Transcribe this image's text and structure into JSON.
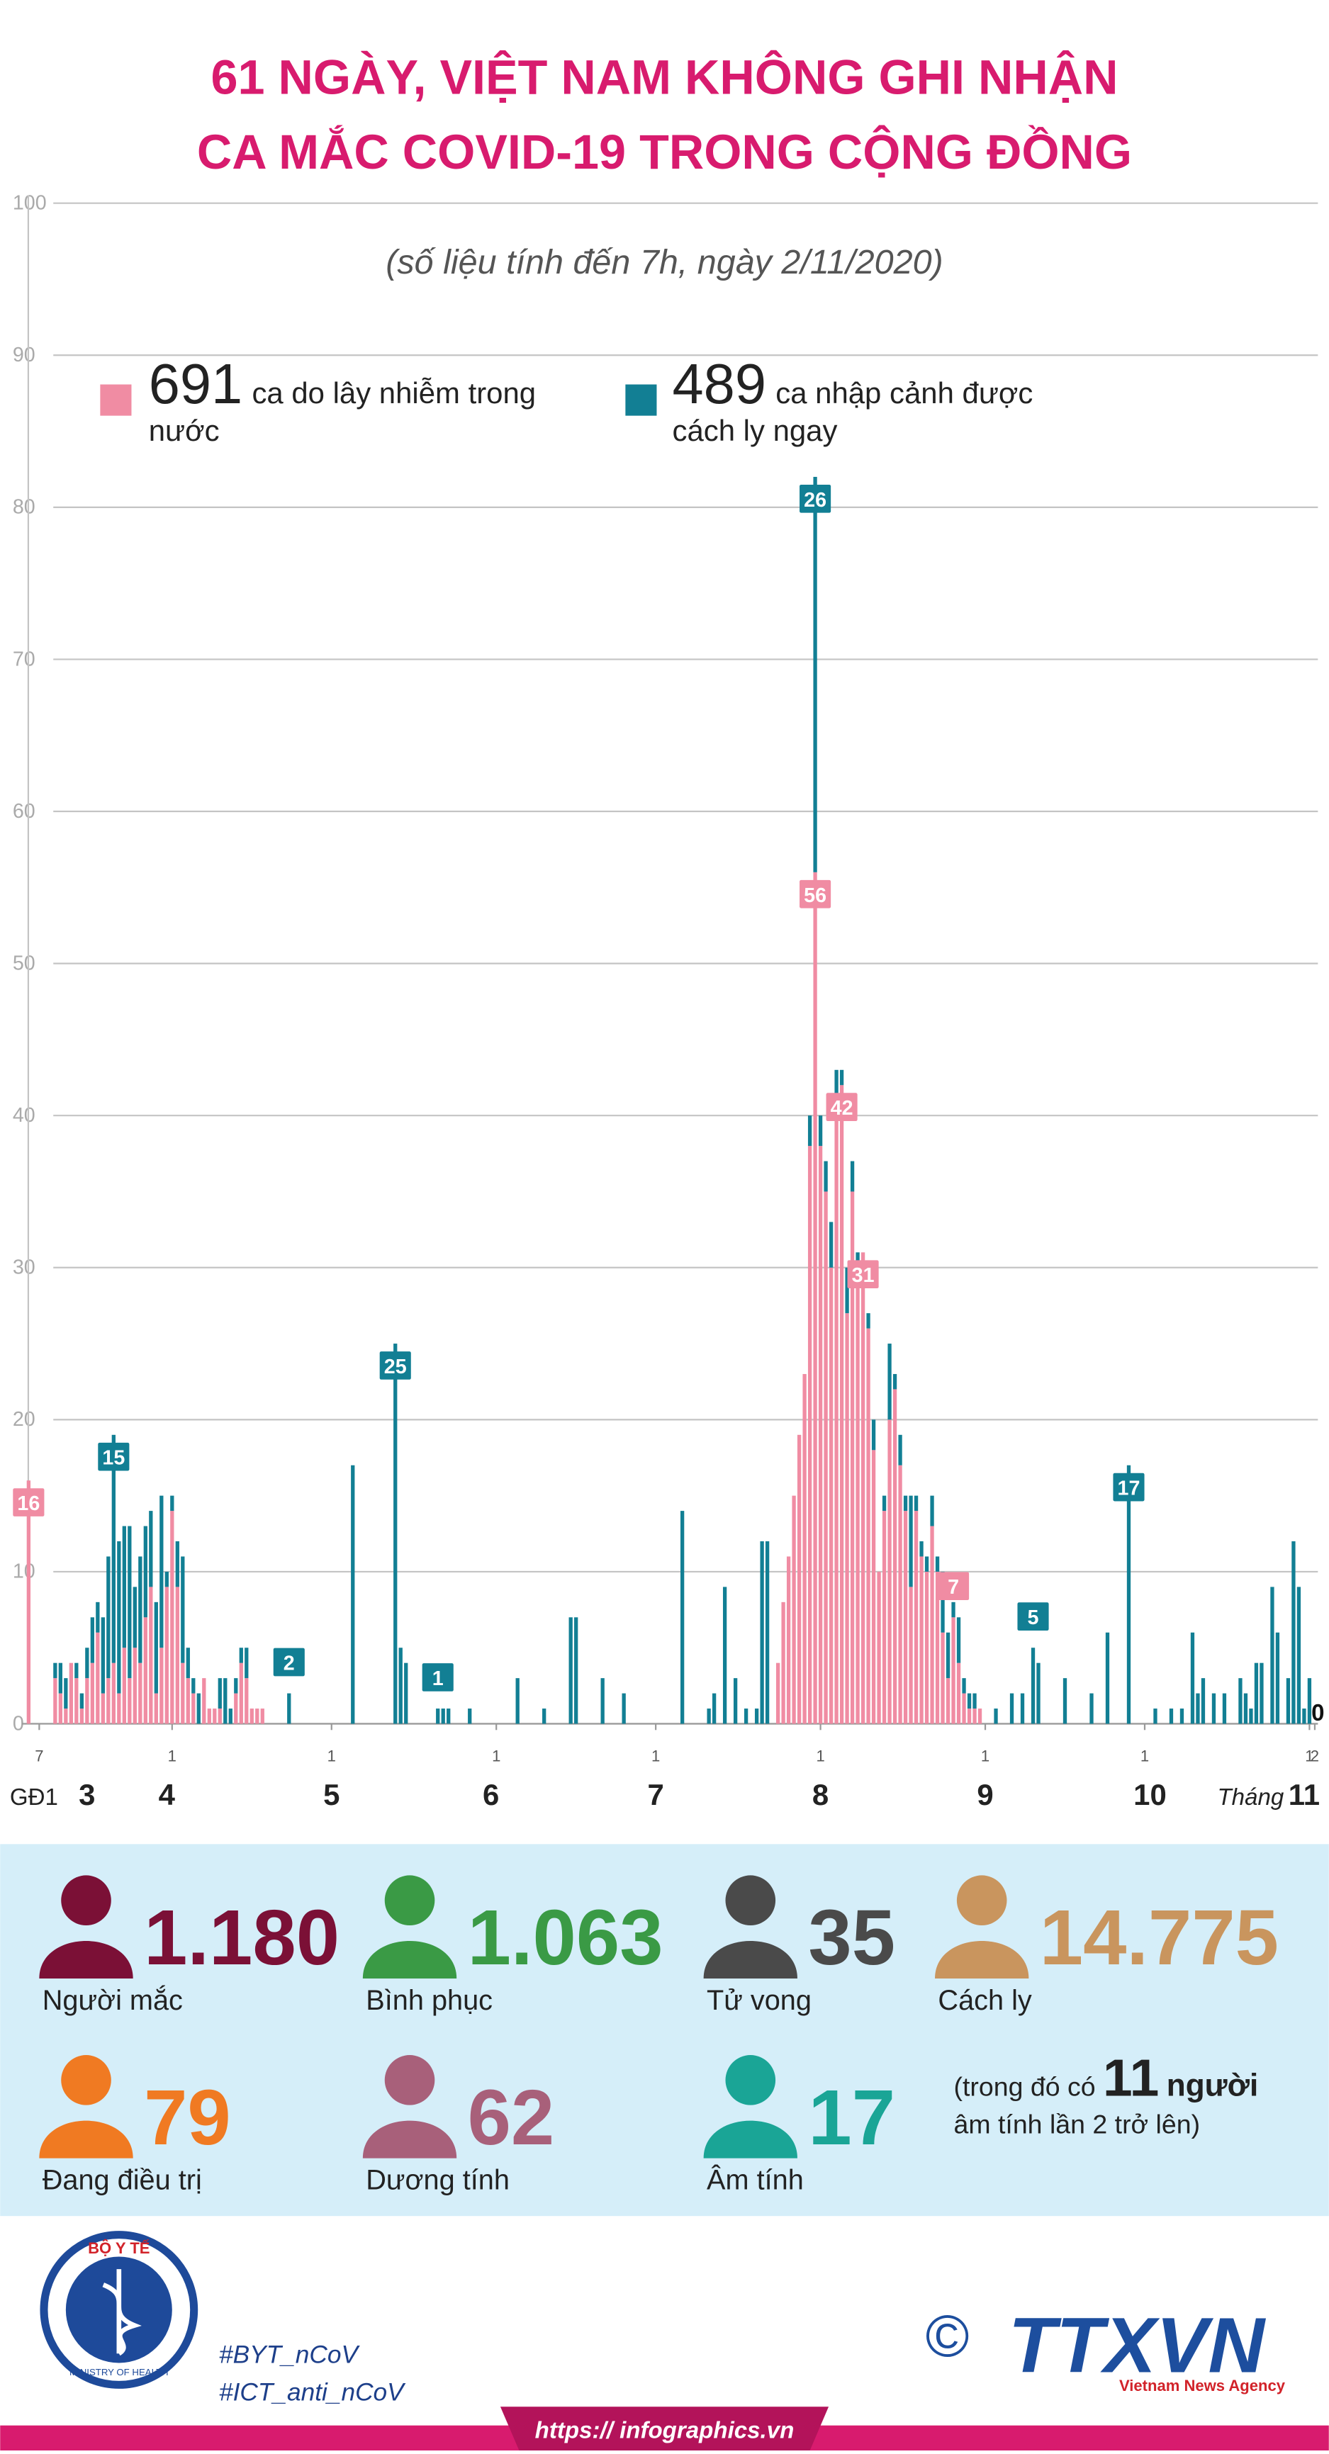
{
  "header": {
    "title_lines": [
      "61 NGÀY, VIỆT NAM KHÔNG GHI NHẬN",
      "CA MẮC COVID-19 TRONG CỘNG ĐỒNG"
    ],
    "subtitle": "(số liệu tính đến 7h, ngày 2/11/2020)"
  },
  "chart_data": {
    "type": "bar",
    "stacked": true,
    "grid": true,
    "ylim": [
      0,
      100
    ],
    "yticks": [
      0,
      10,
      20,
      30,
      40,
      50,
      60,
      70,
      80,
      90,
      100
    ],
    "xlim": [
      3,
      249
    ],
    "xticks": [
      {
        "value": 7,
        "label": "7"
      },
      {
        "value": 32,
        "label": "1"
      },
      {
        "value": 62,
        "label": "1"
      },
      {
        "value": 93,
        "label": "1"
      },
      {
        "value": 123,
        "label": "1"
      },
      {
        "value": 154,
        "label": "1"
      },
      {
        "value": 185,
        "label": "1"
      },
      {
        "value": 215,
        "label": "1"
      },
      {
        "value": 246,
        "label": "1"
      },
      {
        "value": 247,
        "label": "2"
      }
    ],
    "month_ticks": [
      {
        "value": 6,
        "label": "GĐ1"
      },
      {
        "value": 16,
        "label": "3"
      },
      {
        "value": 31,
        "label": "4"
      },
      {
        "value": 62,
        "label": "5"
      },
      {
        "value": 92,
        "label": "6"
      },
      {
        "value": 123,
        "label": "7"
      },
      {
        "value": 154,
        "label": "8"
      },
      {
        "value": 185,
        "label": "9"
      },
      {
        "value": 216,
        "label": "10"
      },
      {
        "value": 245,
        "label": "11"
      }
    ],
    "x_title": "Tháng",
    "x": [
      5,
      10,
      11,
      12,
      13,
      14,
      15,
      16,
      17,
      18,
      19,
      20,
      21,
      22,
      23,
      24,
      25,
      26,
      27,
      28,
      29,
      30,
      31,
      32,
      33,
      34,
      35,
      36,
      37,
      38,
      39,
      40,
      41,
      42,
      43,
      44,
      45,
      46,
      47,
      48,
      49,
      54,
      66,
      74,
      75,
      76,
      82,
      83,
      84,
      88,
      97,
      102,
      107,
      108,
      113,
      117,
      128,
      133,
      134,
      136,
      138,
      140,
      142,
      143,
      144,
      146,
      147,
      148,
      149,
      150,
      151,
      152,
      153,
      154,
      155,
      156,
      157,
      158,
      159,
      160,
      161,
      162,
      163,
      164,
      165,
      166,
      167,
      168,
      169,
      170,
      171,
      172,
      173,
      174,
      175,
      176,
      177,
      178,
      179,
      180,
      181,
      182,
      183,
      184,
      187,
      190,
      192,
      194,
      195,
      200,
      205,
      208,
      212,
      217,
      220,
      222,
      224,
      225,
      226,
      228,
      230,
      233,
      234,
      235,
      236,
      237,
      239,
      240,
      242,
      243,
      244,
      245,
      246,
      247
    ],
    "series": [
      {
        "name": "ca do lây nhiễm trong nước",
        "total": 691,
        "color": "#f08ca3",
        "values": [
          16,
          3,
          2,
          1,
          4,
          3,
          1,
          3,
          4,
          6,
          2,
          3,
          4,
          2,
          5,
          3,
          5,
          4,
          7,
          9,
          2,
          5,
          9,
          14,
          9,
          4,
          3,
          2,
          0,
          3,
          1,
          1,
          1,
          0,
          0,
          2,
          4,
          3,
          1,
          1,
          1,
          0,
          0,
          0,
          0,
          0,
          0,
          0,
          0,
          0,
          0,
          0,
          0,
          0,
          0,
          0,
          0,
          0,
          0,
          0,
          0,
          0,
          0,
          0,
          0,
          4,
          8,
          11,
          15,
          19,
          23,
          38,
          56,
          38,
          35,
          30,
          40,
          42,
          27,
          35,
          30,
          31,
          26,
          18,
          10,
          14,
          20,
          22,
          17,
          14,
          9,
          14,
          11,
          10,
          13,
          10,
          6,
          3,
          7,
          4,
          2,
          1,
          1,
          1,
          0,
          0,
          0,
          0,
          0,
          0,
          0,
          0,
          0,
          0,
          0,
          0,
          0,
          0,
          0,
          0,
          0,
          0,
          0,
          0,
          0,
          0,
          0,
          0,
          0,
          0,
          0,
          0,
          0,
          0
        ],
        "value_labels": [
          "16",
          null,
          null,
          null,
          null,
          null,
          null,
          null,
          null,
          null,
          null,
          null,
          null,
          null,
          null,
          null,
          null,
          null,
          null,
          null,
          null,
          null,
          null,
          null,
          null,
          null,
          null,
          null,
          null,
          null,
          null,
          null,
          null,
          null,
          null,
          null,
          null,
          null,
          null,
          null,
          null,
          null,
          null,
          null,
          null,
          null,
          null,
          null,
          null,
          null,
          null,
          null,
          null,
          null,
          null,
          null,
          null,
          null,
          null,
          null,
          null,
          null,
          null,
          null,
          null,
          null,
          null,
          null,
          null,
          null,
          null,
          null,
          "56",
          null,
          null,
          null,
          null,
          "42",
          null,
          null,
          null,
          "31",
          null,
          null,
          null,
          null,
          null,
          null,
          null,
          null,
          null,
          null,
          null,
          null,
          null,
          null,
          null,
          null,
          "7",
          null,
          null,
          null,
          null,
          null,
          null,
          null,
          null,
          null,
          null,
          null,
          null,
          null,
          null,
          null,
          null,
          null,
          null,
          null,
          null,
          null,
          null,
          null,
          null,
          null,
          null,
          null,
          null,
          null,
          null,
          null,
          null,
          null,
          null,
          "0"
        ]
      },
      {
        "name": "ca nhập cảnh được cách ly ngay",
        "total": 489,
        "color": "#127f94",
        "values": [
          0,
          1,
          2,
          2,
          0,
          1,
          1,
          2,
          3,
          2,
          5,
          8,
          15,
          10,
          8,
          10,
          4,
          7,
          6,
          5,
          6,
          10,
          1,
          1,
          3,
          7,
          2,
          1,
          2,
          0,
          0,
          0,
          2,
          3,
          1,
          1,
          1,
          2,
          0,
          0,
          0,
          2,
          17,
          25,
          5,
          4,
          1,
          1,
          1,
          1,
          3,
          1,
          7,
          7,
          3,
          2,
          14,
          1,
          2,
          9,
          3,
          1,
          1,
          12,
          12,
          0,
          0,
          0,
          0,
          0,
          0,
          2,
          26,
          2,
          2,
          3,
          3,
          1,
          3,
          2,
          1,
          0,
          1,
          2,
          0,
          1,
          5,
          1,
          2,
          1,
          6,
          1,
          1,
          1,
          2,
          1,
          4,
          3,
          1,
          3,
          1,
          1,
          1,
          0,
          1,
          2,
          2,
          5,
          4,
          3,
          2,
          6,
          17,
          1,
          1,
          1,
          6,
          2,
          3,
          2,
          2,
          3,
          2,
          1,
          4,
          4,
          9,
          6,
          3,
          12,
          9,
          1,
          3,
          0
        ],
        "value_labels": [
          null,
          null,
          null,
          null,
          null,
          null,
          null,
          null,
          null,
          null,
          null,
          null,
          "15",
          null,
          null,
          null,
          null,
          null,
          null,
          null,
          null,
          null,
          null,
          null,
          null,
          null,
          null,
          null,
          null,
          null,
          null,
          null,
          null,
          null,
          null,
          null,
          null,
          null,
          null,
          null,
          null,
          "2",
          null,
          "25",
          null,
          null,
          "1",
          null,
          null,
          null,
          null,
          null,
          null,
          null,
          null,
          null,
          null,
          null,
          null,
          null,
          null,
          null,
          null,
          null,
          null,
          null,
          null,
          null,
          null,
          null,
          null,
          null,
          "26",
          null,
          null,
          null,
          null,
          null,
          null,
          null,
          null,
          null,
          null,
          null,
          null,
          null,
          null,
          null,
          null,
          null,
          null,
          null,
          null,
          null,
          null,
          null,
          null,
          null,
          null,
          null,
          null,
          null,
          null,
          null,
          null,
          null,
          null,
          "5",
          null,
          null,
          null,
          null,
          "17",
          null,
          null,
          null,
          null,
          null,
          null,
          null,
          null,
          null,
          null,
          null,
          null,
          null,
          null,
          null,
          null,
          null,
          null,
          null,
          null,
          null
        ]
      }
    ]
  },
  "stats": [
    {
      "value": "1.180",
      "label": "Người mắc"
    },
    {
      "value": "1.063",
      "label": "Bình phục"
    },
    {
      "value": "35",
      "label": "Tử vong"
    },
    {
      "value": "14.775",
      "label": "Cách ly"
    },
    {
      "value": "79",
      "label": "Đang điều trị"
    },
    {
      "value": "62",
      "label": "Dương tính"
    },
    {
      "value": "17",
      "label": "Âm tính"
    }
  ],
  "note": {
    "before": "(trong đó có",
    "number": "11",
    "unit": "người",
    "after": "âm tính lần 2 trở lên)"
  },
  "footer": {
    "logo_top": "BỘ Y TẾ",
    "logo_bottom": "MINISTRY OF HEALTH",
    "hashtags": [
      "#BYT_nCoV",
      "#ICT_anti_nCoV"
    ],
    "copyright": "©",
    "agency": "TTXVN",
    "agency_name": "Vietnam News Agency",
    "website": "https:// infographics.vn"
  }
}
